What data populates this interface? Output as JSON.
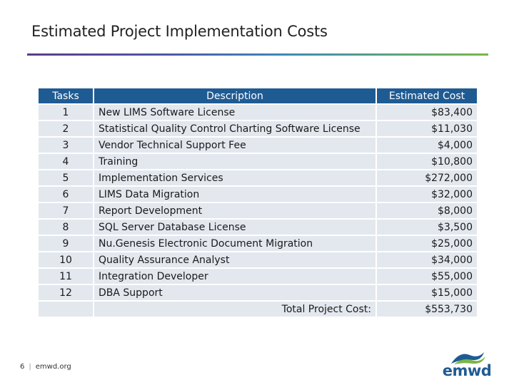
{
  "slide": {
    "title": "Estimated Project Implementation Costs"
  },
  "table": {
    "headers": {
      "tasks": "Tasks",
      "description": "Description",
      "cost": "Estimated Cost"
    },
    "rows": [
      {
        "task": "1",
        "description": "New LIMS Software License",
        "cost": "$83,400"
      },
      {
        "task": "2",
        "description": "Statistical Quality Control Charting Software License",
        "cost": "$11,030"
      },
      {
        "task": "3",
        "description": "Vendor Technical Support Fee",
        "cost": "$4,000"
      },
      {
        "task": "4",
        "description": "Training",
        "cost": "$10,800"
      },
      {
        "task": "5",
        "description": "Implementation Services",
        "cost": "$272,000"
      },
      {
        "task": "6",
        "description": "LIMS Data Migration",
        "cost": "$32,000"
      },
      {
        "task": "7",
        "description": "Report Development",
        "cost": "$8,000"
      },
      {
        "task": "8",
        "description": "SQL Server Database License",
        "cost": "$3,500"
      },
      {
        "task": "9",
        "description": "Nu.Genesis Electronic Document Migration",
        "cost": "$25,000"
      },
      {
        "task": "10",
        "description": "Quality Assurance Analyst",
        "cost": "$34,000"
      },
      {
        "task": "11",
        "description": "Integration Developer",
        "cost": "$55,000"
      },
      {
        "task": "12",
        "description": "DBA Support",
        "cost": "$15,000"
      }
    ],
    "total_label": "Total Project Cost:",
    "total_value": "$553,730"
  },
  "footer": {
    "page_number": "6",
    "separator": "|",
    "website": "emwd.org"
  },
  "logo": {
    "text": "emwd",
    "colors": {
      "text": "#1f5b93",
      "wave_blue": "#1f5b93",
      "wave_green": "#7ab648"
    }
  },
  "colors": {
    "header_bg": "#1f5b93",
    "row_bg": "#e3e8ef"
  }
}
